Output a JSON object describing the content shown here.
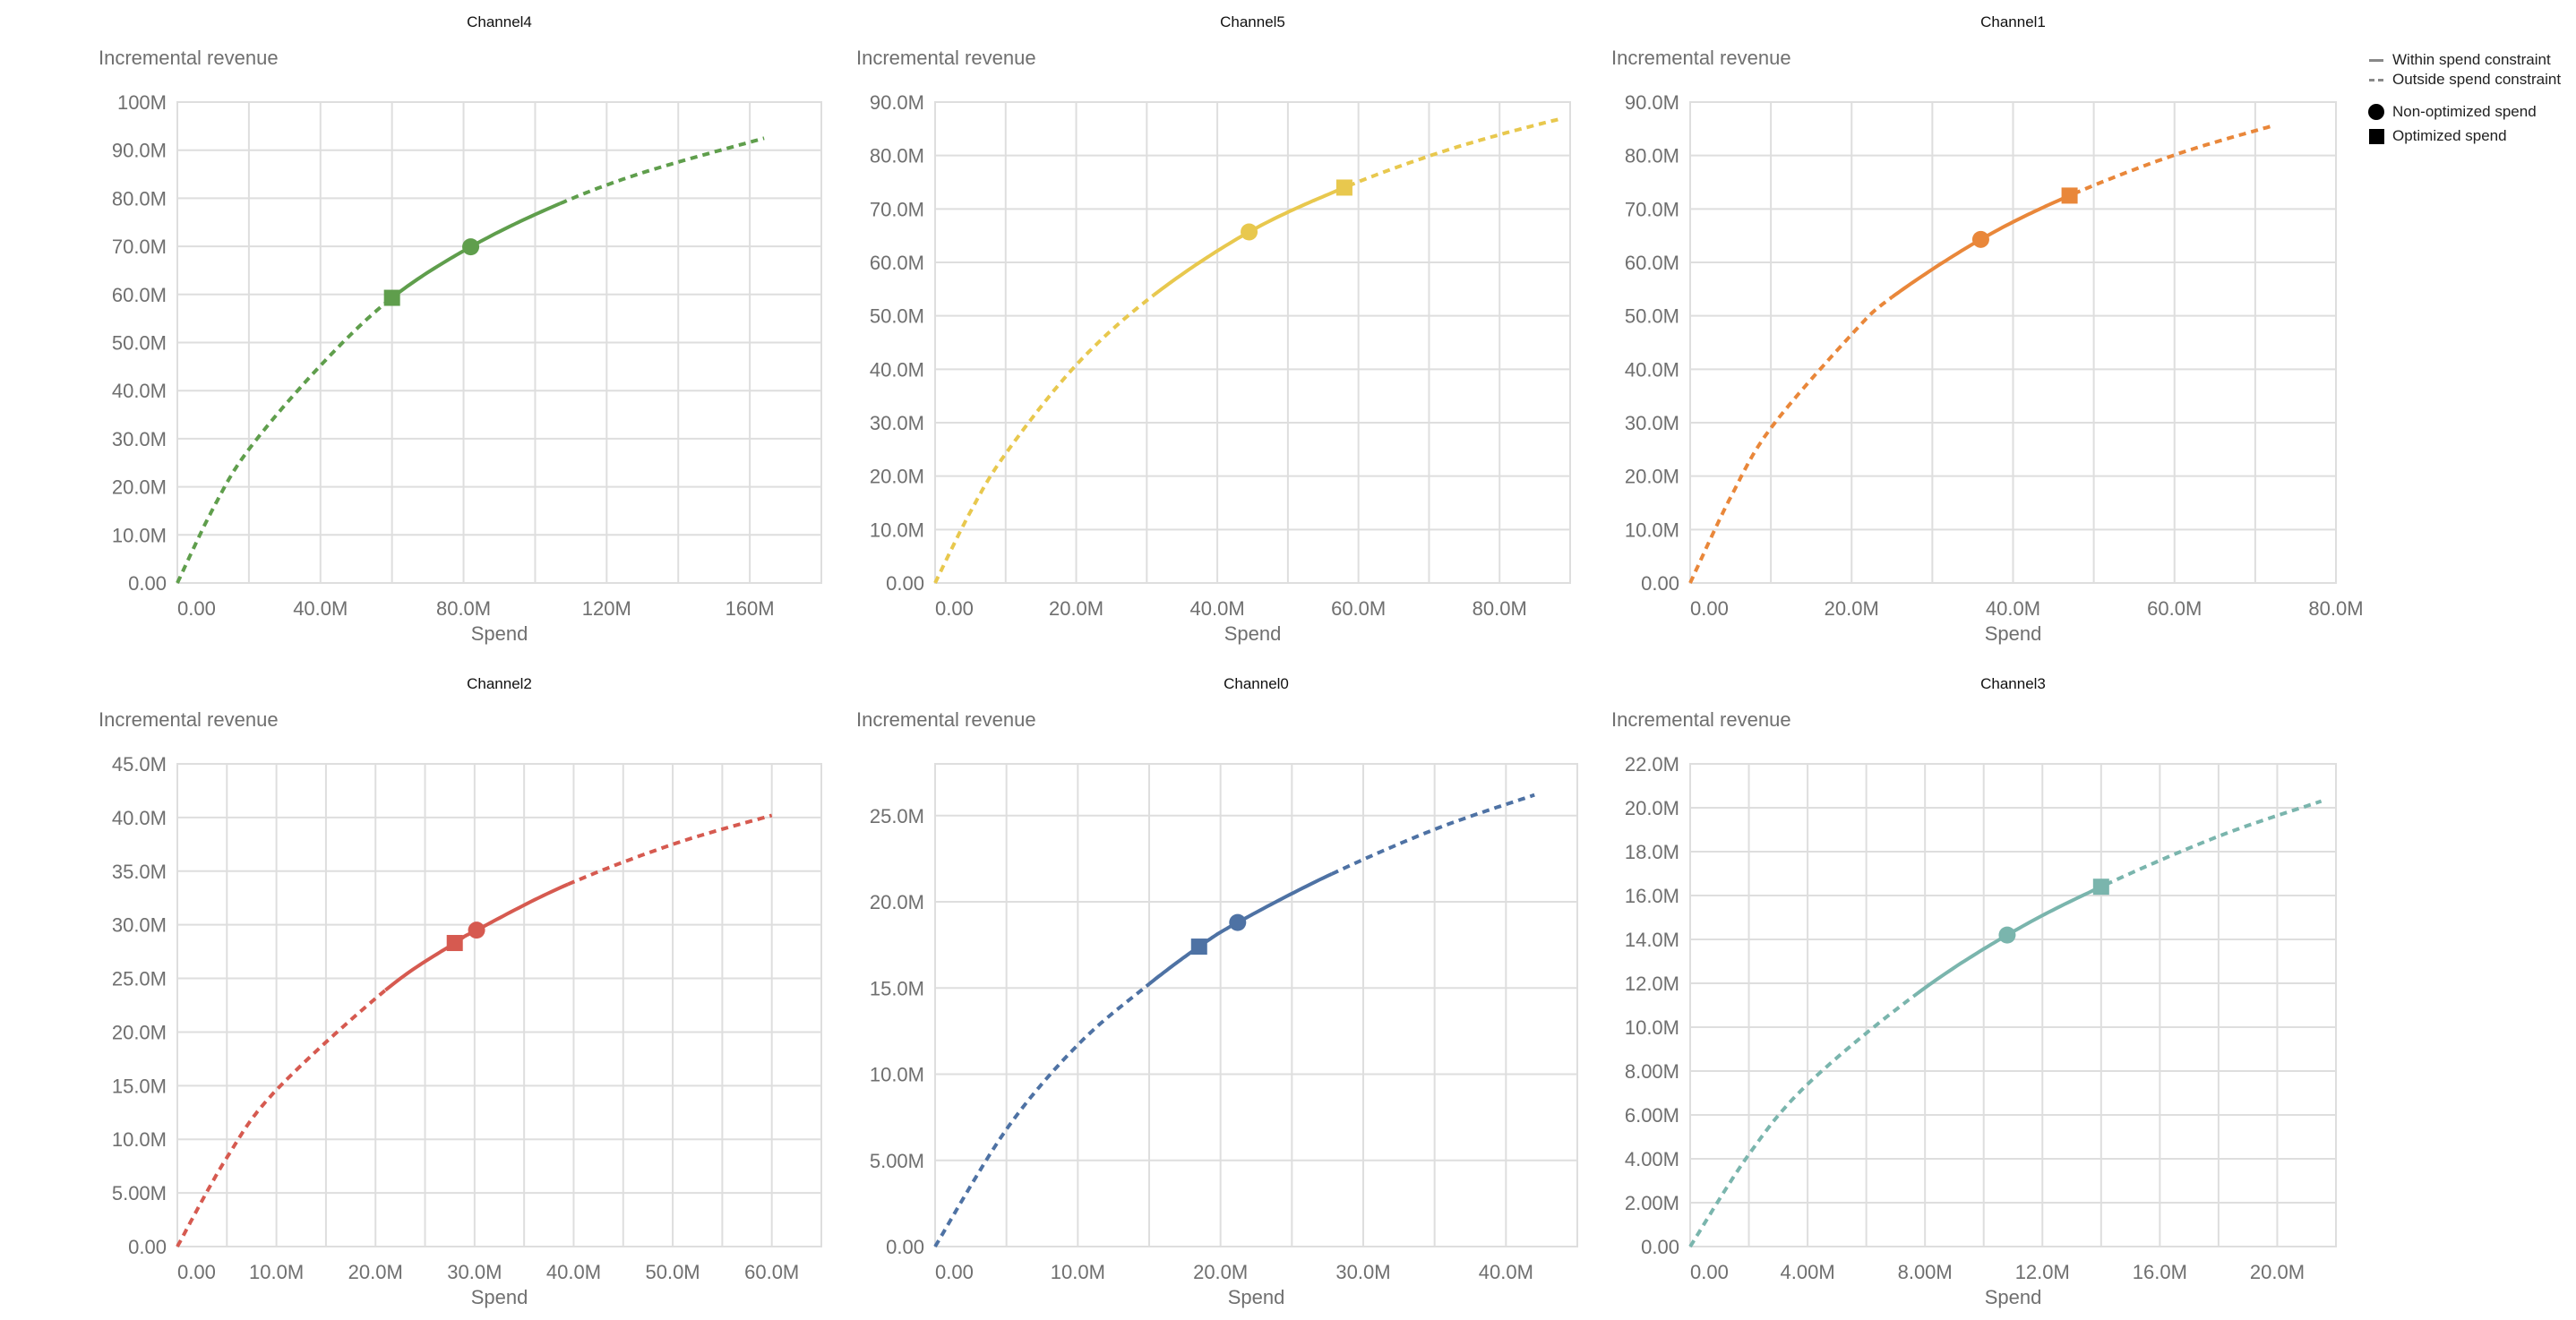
{
  "legend": {
    "within": "Within spend constraint",
    "outside": "Outside spend constraint",
    "non_optimized": "Non-optimized spend",
    "optimized": "Optimized spend"
  },
  "chart_data": [
    {
      "type": "line",
      "title": "Channel4",
      "ylabel": "Incremental revenue",
      "xlabel": "Spend",
      "color": "#5f9e4c",
      "grid": true,
      "xlim": [
        0,
        180
      ],
      "ylim": [
        0,
        100
      ],
      "x_grid_step": 20,
      "y_grid_step": 10,
      "x_ticks": [
        [
          0,
          "0.00"
        ],
        [
          40,
          "40.0M"
        ],
        [
          80,
          "80.0M"
        ],
        [
          120,
          "120M"
        ],
        [
          160,
          "160M"
        ]
      ],
      "y_ticks": [
        [
          0,
          "0.00"
        ],
        [
          10,
          "10.0M"
        ],
        [
          20,
          "20.0M"
        ],
        [
          30,
          "30.0M"
        ],
        [
          40,
          "40.0M"
        ],
        [
          50,
          "50.0M"
        ],
        [
          60,
          "60.0M"
        ],
        [
          70,
          "70.0M"
        ],
        [
          80,
          "80.0M"
        ],
        [
          90,
          "90.0M"
        ],
        [
          100,
          "100M"
        ]
      ],
      "curve": [
        [
          0,
          0
        ],
        [
          10,
          15.5
        ],
        [
          20,
          27.8
        ],
        [
          40,
          45.2
        ],
        [
          60,
          59.3
        ],
        [
          82,
          69.9
        ],
        [
          106,
          78.6
        ],
        [
          130,
          85.3
        ],
        [
          164,
          92.5
        ]
      ],
      "within_constraint": [
        60,
        106
      ],
      "non_optimized": [
        82,
        69.9
      ],
      "optimized": [
        60,
        59.3
      ]
    },
    {
      "type": "line",
      "title": "Channel5",
      "ylabel": "Incremental revenue",
      "xlabel": "Spend",
      "color": "#e8c84e",
      "grid": true,
      "xlim": [
        0,
        90
      ],
      "ylim": [
        0,
        90
      ],
      "x_grid_step": 10,
      "y_grid_step": 10,
      "x_ticks": [
        [
          0,
          "0.00"
        ],
        [
          20,
          "20.0M"
        ],
        [
          40,
          "40.0M"
        ],
        [
          60,
          "60.0M"
        ],
        [
          80,
          "80.0M"
        ]
      ],
      "y_ticks": [
        [
          0,
          "0.00"
        ],
        [
          10,
          "10.0M"
        ],
        [
          20,
          "20.0M"
        ],
        [
          30,
          "30.0M"
        ],
        [
          40,
          "40.0M"
        ],
        [
          50,
          "50.0M"
        ],
        [
          60,
          "60.0M"
        ],
        [
          70,
          "70.0M"
        ],
        [
          80,
          "80.0M"
        ],
        [
          90,
          "90.0M"
        ]
      ],
      "curve": [
        [
          0,
          0
        ],
        [
          5,
          13.3
        ],
        [
          10,
          24.2
        ],
        [
          20,
          40.8
        ],
        [
          31,
          53.9
        ],
        [
          44.5,
          65.7
        ],
        [
          58,
          74
        ],
        [
          70,
          79.9
        ],
        [
          80,
          83.9
        ],
        [
          89,
          87
        ]
      ],
      "within_constraint": [
        31,
        58
      ],
      "non_optimized": [
        44.5,
        65.7
      ],
      "optimized": [
        58,
        74
      ]
    },
    {
      "type": "line",
      "title": "Channel1",
      "ylabel": "Incremental revenue",
      "xlabel": "Spend",
      "color": "#e9873a",
      "grid": true,
      "xlim": [
        0,
        80
      ],
      "ylim": [
        0,
        90
      ],
      "x_grid_step": 10,
      "y_grid_step": 10,
      "x_ticks": [
        [
          0,
          "0.00"
        ],
        [
          20,
          "20.0M"
        ],
        [
          40,
          "40.0M"
        ],
        [
          60,
          "60.0M"
        ],
        [
          80,
          "80.0M"
        ]
      ],
      "y_ticks": [
        [
          0,
          "0.00"
        ],
        [
          10,
          "10.0M"
        ],
        [
          20,
          "20.0M"
        ],
        [
          30,
          "30.0M"
        ],
        [
          40,
          "40.0M"
        ],
        [
          50,
          "50.0M"
        ],
        [
          60,
          "60.0M"
        ],
        [
          70,
          "70.0M"
        ],
        [
          80,
          "80.0M"
        ],
        [
          90,
          "90.0M"
        ]
      ],
      "curve": [
        [
          0,
          0
        ],
        [
          5,
          16
        ],
        [
          10,
          29
        ],
        [
          20,
          46.5
        ],
        [
          25,
          53.5
        ],
        [
          36,
          64.3
        ],
        [
          47,
          72.5
        ],
        [
          60,
          80.1
        ],
        [
          72,
          85.5
        ]
      ],
      "within_constraint": [
        25,
        47
      ],
      "non_optimized": [
        36,
        64.3
      ],
      "optimized": [
        47,
        72.5
      ]
    },
    {
      "type": "line",
      "title": "Channel2",
      "ylabel": "Incremental revenue",
      "xlabel": "Spend",
      "color": "#d65a50",
      "grid": true,
      "xlim": [
        0,
        65
      ],
      "ylim": [
        0,
        45
      ],
      "x_grid_step": 5,
      "y_grid_step": 5,
      "x_ticks": [
        [
          0,
          "0.00"
        ],
        [
          10,
          "10.0M"
        ],
        [
          20,
          "20.0M"
        ],
        [
          30,
          "30.0M"
        ],
        [
          40,
          "40.0M"
        ],
        [
          50,
          "50.0M"
        ],
        [
          60,
          "60.0M"
        ]
      ],
      "y_ticks": [
        [
          0,
          "0.00"
        ],
        [
          5,
          "5.00M"
        ],
        [
          10,
          "10.0M"
        ],
        [
          15,
          "15.0M"
        ],
        [
          20,
          "20.0M"
        ],
        [
          25,
          "25.0M"
        ],
        [
          30,
          "30.0M"
        ],
        [
          35,
          "35.0M"
        ],
        [
          40,
          "40.0M"
        ],
        [
          45,
          "45.0M"
        ]
      ],
      "curve": [
        [
          0,
          0
        ],
        [
          5,
          8.3
        ],
        [
          10,
          14.6
        ],
        [
          21,
          23.9
        ],
        [
          28,
          28.3
        ],
        [
          30.2,
          29.5
        ],
        [
          39,
          33.6
        ],
        [
          50,
          37.5
        ],
        [
          60,
          40.2
        ]
      ],
      "within_constraint": [
        21,
        39
      ],
      "non_optimized": [
        30.2,
        29.5
      ],
      "optimized": [
        28,
        28.3
      ]
    },
    {
      "type": "line",
      "title": "Channel0",
      "ylabel": "Incremental revenue",
      "xlabel": "Spend",
      "color": "#4e72a4",
      "grid": true,
      "xlim": [
        0,
        45
      ],
      "ylim": [
        0,
        28
      ],
      "x_grid_step": 5,
      "y_grid_step": 5,
      "x_ticks": [
        [
          0,
          "0.00"
        ],
        [
          10,
          "10.0M"
        ],
        [
          20,
          "20.0M"
        ],
        [
          30,
          "30.0M"
        ],
        [
          40,
          "40.0M"
        ]
      ],
      "y_ticks": [
        [
          0,
          "0.00"
        ],
        [
          5,
          "5.00M"
        ],
        [
          10,
          "10.0M"
        ],
        [
          15,
          "15.0M"
        ],
        [
          20,
          "20.0M"
        ],
        [
          25,
          "25.0M"
        ]
      ],
      "curve": [
        [
          0,
          0
        ],
        [
          5,
          6.8
        ],
        [
          10,
          11.7
        ],
        [
          14.8,
          15.1
        ],
        [
          18.5,
          17.4
        ],
        [
          21.2,
          18.8
        ],
        [
          27.5,
          21.5
        ],
        [
          35,
          24.2
        ],
        [
          42,
          26.2
        ]
      ],
      "within_constraint": [
        14.8,
        27.5
      ],
      "non_optimized": [
        21.2,
        18.8
      ],
      "optimized": [
        18.5,
        17.4
      ]
    },
    {
      "type": "line",
      "title": "Channel3",
      "ylabel": "Incremental revenue",
      "xlabel": "Spend",
      "color": "#7ab5ad",
      "grid": true,
      "xlim": [
        0,
        22
      ],
      "ylim": [
        0,
        22
      ],
      "x_grid_step": 2,
      "y_grid_step": 2,
      "x_ticks": [
        [
          0,
          "0.00"
        ],
        [
          4,
          "4.00M"
        ],
        [
          8,
          "8.00M"
        ],
        [
          12,
          "12.0M"
        ],
        [
          16,
          "16.0M"
        ],
        [
          20,
          "20.0M"
        ]
      ],
      "y_ticks": [
        [
          0,
          "0.00"
        ],
        [
          2,
          "2.00M"
        ],
        [
          4,
          "4.00M"
        ],
        [
          6,
          "6.00M"
        ],
        [
          8,
          "8.00M"
        ],
        [
          10,
          "10.0M"
        ],
        [
          12,
          "12.0M"
        ],
        [
          14,
          "14.0M"
        ],
        [
          16,
          "16.0M"
        ],
        [
          18,
          "18.0M"
        ],
        [
          20,
          "20.0M"
        ],
        [
          22,
          "22.0M"
        ]
      ],
      "curve": [
        [
          0,
          0
        ],
        [
          2,
          4.2
        ],
        [
          4,
          7.4
        ],
        [
          7.6,
          11.4
        ],
        [
          10.8,
          14.2
        ],
        [
          14,
          16.4
        ],
        [
          18,
          18.7
        ],
        [
          21.5,
          20.3
        ]
      ],
      "within_constraint": [
        7.6,
        14
      ],
      "non_optimized": [
        10.8,
        14.2
      ],
      "optimized": [
        14,
        16.4
      ]
    }
  ]
}
